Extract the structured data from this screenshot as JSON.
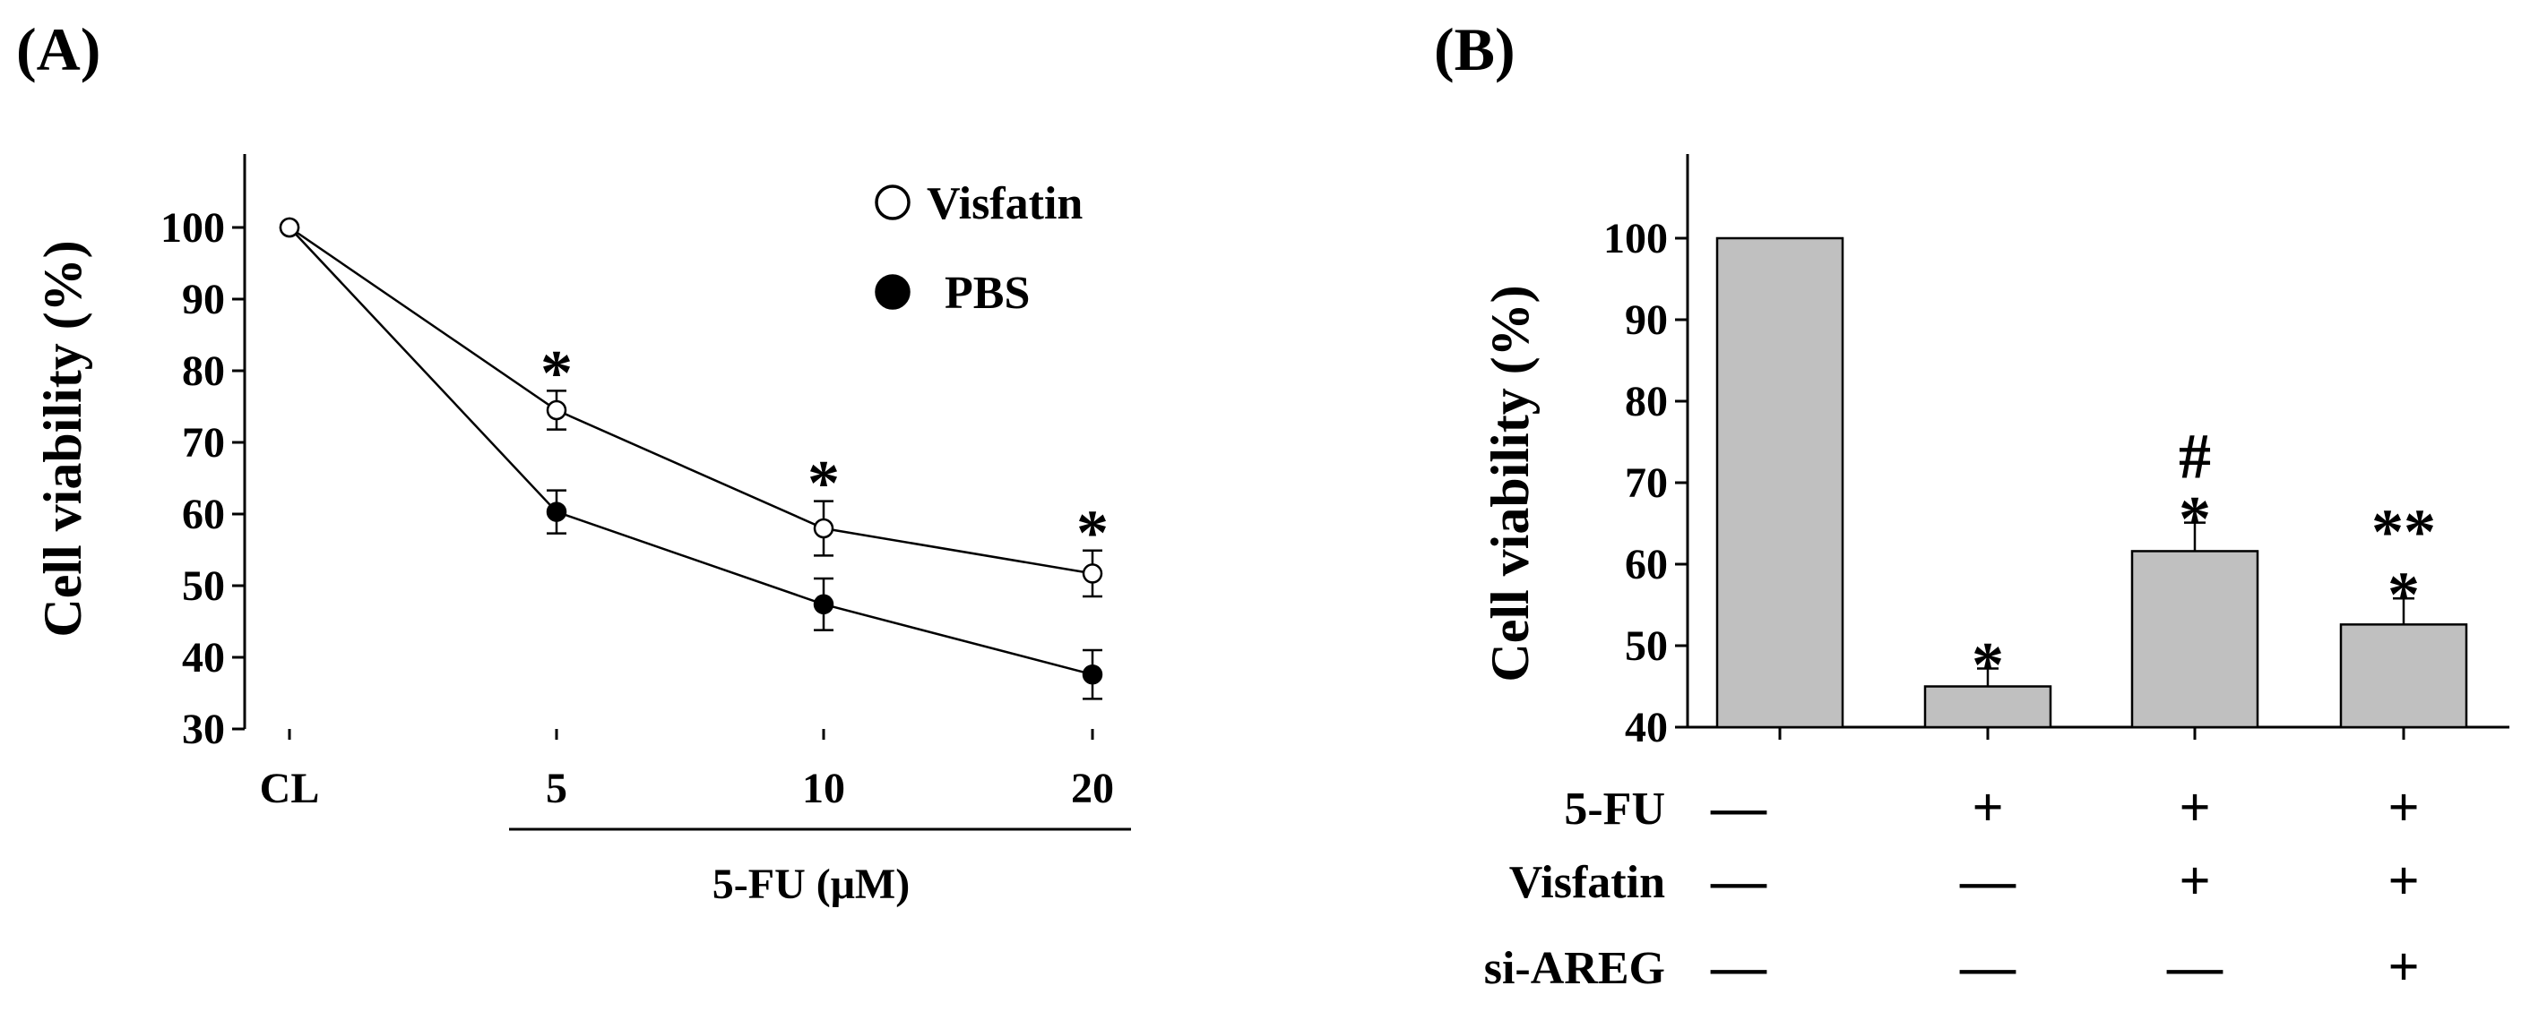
{
  "chart_data": [
    {
      "type": "line",
      "panel_label": "(A)",
      "ylabel": "Cell viability (%)",
      "xlabel": "5-FU (μM)",
      "ylim": [
        30,
        100
      ],
      "yticks": [
        "30",
        "40",
        "50",
        "60",
        "70",
        "80",
        "90",
        "100"
      ],
      "categories": [
        "CL",
        "5",
        "10",
        "20"
      ],
      "legend_position": "top-right",
      "series": [
        {
          "name": "Visfatin",
          "marker": "open-circle",
          "values": [
            100,
            74.5,
            58,
            51.7
          ],
          "errors": [
            0,
            2.7,
            3.8,
            3.2
          ],
          "significance": [
            "",
            "*",
            "*",
            "*"
          ]
        },
        {
          "name": "PBS",
          "marker": "filled-circle",
          "values": [
            100,
            60.3,
            47.4,
            37.6
          ],
          "errors": [
            0,
            3.0,
            3.6,
            3.4
          ],
          "significance": [
            "",
            "",
            "",
            ""
          ]
        }
      ]
    },
    {
      "type": "bar",
      "panel_label": "(B)",
      "ylabel": "Cell viability (%)",
      "ylim": [
        40,
        100
      ],
      "yticks": [
        "40",
        "50",
        "60",
        "70",
        "80",
        "90",
        "100"
      ],
      "bar_color": "#c0c0c0",
      "values": [
        100,
        45.0,
        61.6,
        52.6
      ],
      "errors": [
        0,
        2.2,
        3.5,
        3.2
      ],
      "annotations": [
        [],
        [
          "*"
        ],
        [
          "*",
          "#"
        ],
        [
          "*",
          "**"
        ]
      ],
      "conditions": [
        {
          "label": "5-FU",
          "values": [
            "—",
            "+",
            "+",
            "+"
          ]
        },
        {
          "label": "Visfatin",
          "values": [
            "—",
            "—",
            "+",
            "+"
          ]
        },
        {
          "label": "si-AREG",
          "values": [
            "—",
            "—",
            "—",
            "+"
          ]
        }
      ]
    }
  ]
}
